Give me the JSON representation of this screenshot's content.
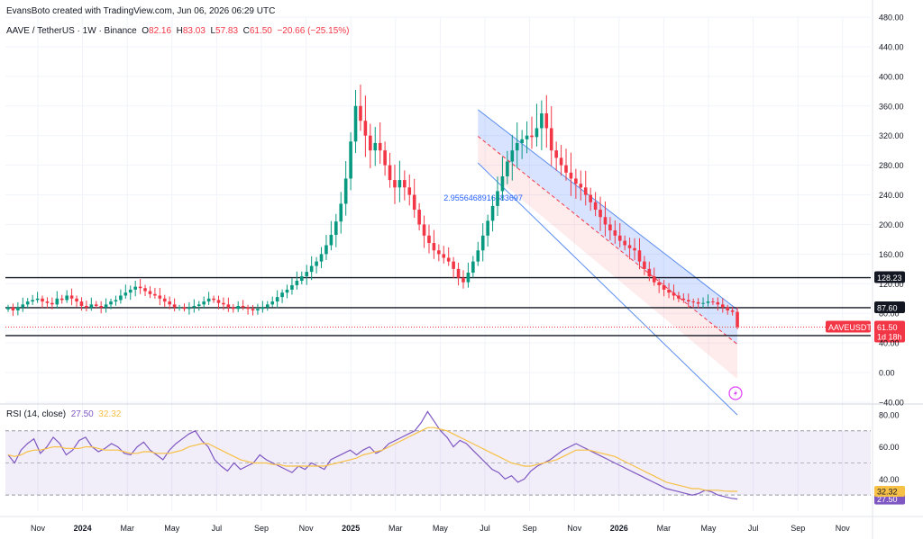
{
  "header": {
    "credit": "EvansBoto created with TradingView.com, Jun 06, 2026 06:29 UTC",
    "symbol": "AAVE / TetherUS · 1W · Binance",
    "ohlc": [
      {
        "k": "O",
        "v": "82.16"
      },
      {
        "k": "H",
        "v": "83.03"
      },
      {
        "k": "L",
        "v": "57.83"
      },
      {
        "k": "C",
        "v": "61.50"
      }
    ],
    "change": "−20.66 (−25.15%)"
  },
  "rsi": {
    "label": "RSI (14, close)",
    "value": "27.50",
    "ma_value": "32.32"
  },
  "chart_data": [
    {
      "type": "candlestick",
      "title": "AAVE / TetherUS · 1W · Binance",
      "ylim": [
        -40,
        480
      ],
      "yticks": [
        480,
        440,
        400,
        360,
        320,
        280,
        240,
        200,
        160,
        120,
        80,
        40,
        0,
        -40
      ],
      "ytick_labels": [
        "480.00",
        "440.00",
        "400.00",
        "360.00",
        "320.00",
        "280.00",
        "240.00",
        "200.00",
        "160.00",
        "120.00",
        "80.00",
        "40.00",
        "0.00",
        "−40.00"
      ],
      "xticks": [
        "Nov",
        "2024",
        "Mar",
        "May",
        "Jul",
        "Sep",
        "Nov",
        "2025",
        "Mar",
        "May",
        "Jul",
        "Sep",
        "Nov",
        "2026",
        "Mar",
        "May",
        "Jul",
        "Sep",
        "Nov"
      ],
      "bold_xticks": [
        "2024",
        "2025",
        "2026"
      ],
      "close_path": [
        88,
        84,
        88,
        92,
        96,
        98,
        100,
        96,
        94,
        92,
        100,
        98,
        104,
        100,
        96,
        90,
        88,
        92,
        90,
        88,
        92,
        96,
        98,
        104,
        108,
        112,
        116,
        114,
        110,
        106,
        104,
        100,
        96,
        92,
        88,
        88,
        86,
        88,
        90,
        92,
        96,
        100,
        98,
        94,
        92,
        88,
        86,
        90,
        88,
        86,
        84,
        86,
        88,
        92,
        96,
        102,
        108,
        112,
        118,
        124,
        130,
        136,
        144,
        150,
        160,
        172,
        186,
        204,
        228,
        262,
        312,
        360,
        340,
        320,
        300,
        310,
        300,
        280,
        260,
        250,
        260,
        250,
        240,
        220,
        200,
        185,
        175,
        165,
        160,
        155,
        150,
        140,
        128,
        122,
        135,
        150,
        165,
        185,
        205,
        225,
        245,
        265,
        285,
        300,
        310,
        315,
        320,
        318,
        330,
        350,
        330,
        300,
        290,
        280,
        270,
        262,
        255,
        250,
        240,
        230,
        220,
        210,
        200,
        192,
        185,
        178,
        172,
        168,
        165,
        150,
        140,
        130,
        122,
        118,
        112,
        108,
        104,
        100,
        98,
        96,
        95,
        93,
        94,
        96,
        95,
        92,
        88,
        84,
        82,
        61.5
      ],
      "horizontal_levels": [
        {
          "value": 128.23,
          "label": "128.23"
        },
        {
          "value": 87.6,
          "label": "87.60"
        },
        {
          "value": 50.0,
          "label": "50.00"
        }
      ],
      "last_price": {
        "label": "AAVEUSDT",
        "value": "61.50",
        "countdown": "1d 18h"
      },
      "channel_label": "2.9556468916683697",
      "channel": {
        "start": {
          "x": "Aug 2025",
          "y": 355
        },
        "end": {
          "x": "May 2026",
          "y": 85
        },
        "width": 72
      }
    },
    {
      "type": "line",
      "title": "RSI (14, close)",
      "ylim": [
        20,
        85
      ],
      "yticks": [
        80,
        60,
        40
      ],
      "ytick_labels": [
        "80.00",
        "60.00",
        "40.00"
      ],
      "band": [
        30,
        70
      ],
      "series": [
        {
          "name": "RSI",
          "color": "#7e57c2",
          "last": 27.5,
          "values": [
            55,
            50,
            58,
            62,
            65,
            56,
            60,
            66,
            62,
            55,
            58,
            64,
            66,
            60,
            57,
            59,
            62,
            60,
            56,
            55,
            60,
            63,
            58,
            55,
            52,
            58,
            62,
            65,
            68,
            70,
            64,
            60,
            52,
            48,
            45,
            50,
            46,
            48,
            50,
            55,
            52,
            50,
            48,
            46,
            44,
            48,
            46,
            50,
            48,
            46,
            52,
            54,
            56,
            58,
            55,
            58,
            60,
            56,
            58,
            62,
            64,
            66,
            68,
            70,
            75,
            82,
            76,
            70,
            66,
            60,
            64,
            62,
            58,
            54,
            50,
            46,
            44,
            40,
            42,
            38,
            40,
            45,
            48,
            50,
            52,
            55,
            58,
            60,
            62,
            60,
            58,
            56,
            54,
            52,
            50,
            48,
            46,
            44,
            42,
            40,
            38,
            36,
            34,
            33,
            32,
            31,
            30,
            31,
            33,
            32,
            30,
            29,
            28,
            27.5
          ]
        },
        {
          "name": "RSI-based MA",
          "color": "#f7c046",
          "last": 32.32,
          "values": [
            55,
            54,
            55,
            57,
            58,
            58,
            59,
            60,
            60,
            59,
            59,
            59,
            60,
            60,
            59,
            58,
            58,
            58,
            57,
            56,
            56,
            57,
            57,
            56,
            56,
            56,
            57,
            58,
            60,
            61,
            62,
            62,
            60,
            58,
            56,
            54,
            52,
            51,
            50,
            50,
            50,
            49,
            49,
            48,
            48,
            48,
            48,
            48,
            48,
            48,
            49,
            50,
            51,
            52,
            53,
            55,
            56,
            57,
            58,
            60,
            62,
            64,
            66,
            68,
            70,
            72,
            72,
            71,
            70,
            68,
            66,
            64,
            62,
            60,
            58,
            56,
            54,
            52,
            50,
            49,
            48,
            48,
            49,
            50,
            51,
            52,
            54,
            56,
            58,
            58,
            58,
            57,
            56,
            55,
            54,
            52,
            50,
            48,
            46,
            44,
            42,
            40,
            38,
            37,
            36,
            35,
            34,
            34,
            33,
            33,
            33,
            32.5,
            32.3,
            32.32
          ]
        }
      ]
    }
  ]
}
